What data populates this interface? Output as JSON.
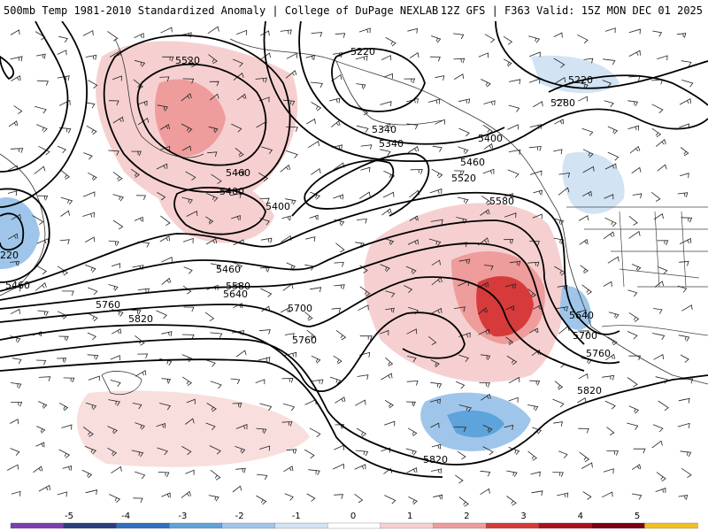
{
  "header": {
    "left": "500mb Temp 1981-2010 Standardized Anomaly | College of DuPage NEXLAB",
    "right": "12Z GFS | F363 Valid: 15Z MON DEC 01 2025"
  },
  "contour_labels": [
    "5520",
    "5220",
    "5220",
    "5280",
    "5340",
    "5340",
    "5400",
    "5460",
    "5520",
    "5580",
    "5400",
    "5460",
    "5400",
    "5460",
    "5580",
    "5640",
    "5700",
    "5760",
    "5820",
    "5640",
    "5700",
    "5760",
    "5760",
    "5820",
    "5820",
    "5460",
    "220"
  ],
  "colorbar": {
    "ticks": [
      "-5",
      "-4",
      "-3",
      "-2",
      "-1",
      "0",
      "1",
      "2",
      "3",
      "4",
      "5"
    ],
    "colors": [
      "#7b3fb0",
      "#2a3d7c",
      "#2e6fc0",
      "#5ea3dc",
      "#9fc6ea",
      "#d2e3f4",
      "#ffffff",
      "#f6d0d0",
      "#ee9c9c",
      "#d73a3a",
      "#a8101e",
      "#7a0012",
      "#f0c020"
    ]
  }
}
